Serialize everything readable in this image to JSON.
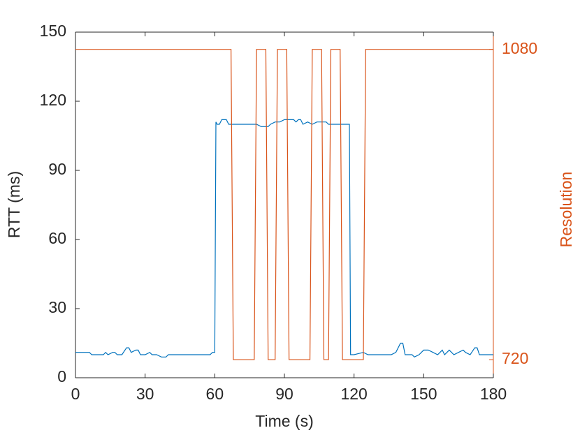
{
  "chart_data": {
    "type": "line",
    "x_label": "Time (s)",
    "y_label": "RTT (ms)",
    "y2_label": "Resolution",
    "xlim": [
      0,
      180
    ],
    "xticks": [
      0,
      30,
      60,
      90,
      120,
      150,
      180
    ],
    "ylim": [
      0,
      150
    ],
    "yticks": [
      0,
      30,
      60,
      90,
      120,
      150
    ],
    "y2lim": [
      699,
      1100
    ],
    "y2ticks": [
      720,
      1080
    ],
    "y2_color": "#d95319",
    "series": [
      {
        "color": "#0072bd",
        "x": [
          0,
          6,
          7,
          12,
          13,
          14,
          16,
          17,
          18,
          20,
          22,
          23,
          24,
          26,
          27,
          28,
          30,
          32,
          33,
          35,
          37,
          39,
          40,
          58,
          59,
          60,
          60.5,
          61,
          62,
          63,
          65,
          66,
          78,
          80,
          83,
          84,
          86,
          88,
          90,
          94,
          95,
          96,
          97,
          98,
          100,
          102,
          104,
          108,
          109,
          118,
          118.5,
          120,
          124,
          126,
          136,
          138,
          140,
          141,
          142,
          145,
          146,
          148,
          150,
          152,
          154,
          156,
          158,
          159,
          161,
          162,
          163,
          165,
          167,
          168,
          170,
          172,
          173,
          174,
          180
        ],
        "values": [
          11,
          11,
          10,
          10,
          11,
          10,
          11,
          11,
          10,
          10,
          13,
          13,
          11,
          12,
          12,
          10,
          10,
          11,
          10,
          10,
          9,
          9,
          10,
          10,
          11,
          11,
          111,
          110,
          110,
          112,
          112,
          110,
          110,
          109,
          109,
          110,
          111,
          111,
          112,
          112,
          111,
          112,
          112,
          110,
          111,
          110,
          111,
          111,
          110,
          110,
          10,
          10,
          11,
          10,
          10,
          11,
          15,
          15,
          10,
          10,
          9,
          10,
          12,
          12,
          11,
          10,
          12,
          10,
          12,
          11,
          10,
          11,
          12,
          11,
          10,
          13,
          13,
          10,
          10
        ]
      },
      {
        "color": "#d95319",
        "axis": "y2",
        "x": [
          0,
          67,
          68,
          77,
          78,
          82,
          83,
          86,
          87,
          91,
          92,
          101,
          102,
          106,
          107,
          109,
          110,
          114,
          115,
          124,
          125,
          180
        ],
        "values": [
          1080,
          1080,
          720,
          720,
          1080,
          1080,
          720,
          720,
          1080,
          1080,
          720,
          720,
          1080,
          1080,
          720,
          720,
          1080,
          1080,
          720,
          720,
          1080,
          1080
        ]
      }
    ]
  }
}
